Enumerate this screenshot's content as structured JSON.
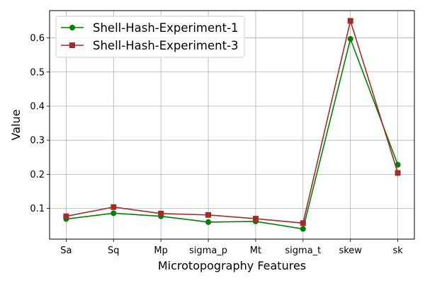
{
  "chart_data": {
    "type": "line",
    "xlabel": "Microtopography Features",
    "ylabel": "Value",
    "categories": [
      "Sa",
      "Sq",
      "Mp",
      "sigma_p",
      "Mt",
      "sigma_t",
      "skew",
      "sk"
    ],
    "yticks": [
      "0.1",
      "0.2",
      "0.3",
      "0.4",
      "0.5",
      "0.6"
    ],
    "ylim": [
      0.01,
      0.68
    ],
    "grid": true,
    "legend_position": "top-left",
    "series": [
      {
        "name": "Shell-Hash-Experiment-1",
        "color": "#008000",
        "marker": "circle",
        "values": [
          0.069,
          0.086,
          0.077,
          0.06,
          0.062,
          0.04,
          0.597,
          0.228
        ]
      },
      {
        "name": "Shell-Hash-Experiment-3",
        "color": "#a52a2a",
        "marker": "square",
        "values": [
          0.077,
          0.104,
          0.085,
          0.081,
          0.07,
          0.057,
          0.65,
          0.204
        ]
      }
    ]
  }
}
